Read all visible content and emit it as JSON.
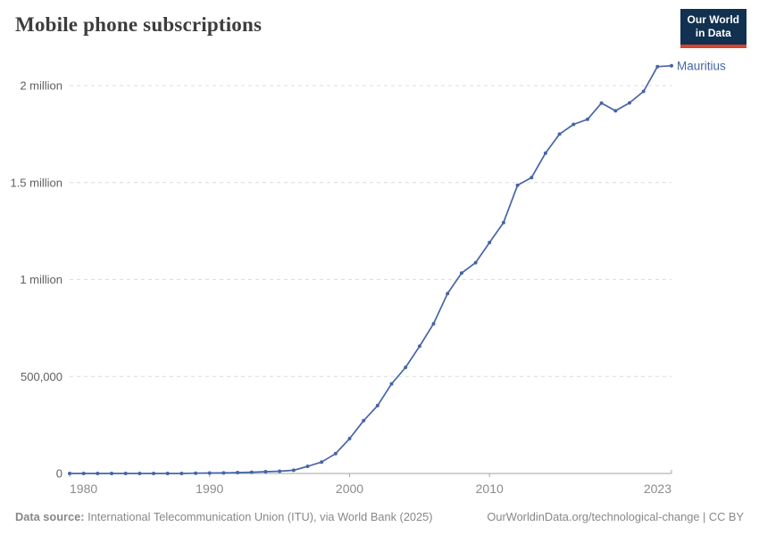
{
  "header": {
    "title": "Mobile phone subscriptions",
    "logo": {
      "line1": "Our World",
      "line2": "in Data"
    }
  },
  "chart_data": {
    "type": "line",
    "title": "Mobile phone subscriptions",
    "xlabel": "",
    "ylabel": "",
    "xlim": [
      1980,
      2023
    ],
    "ylim": [
      0,
      2000000
    ],
    "grid": "dashed-horizontal",
    "legend_position": "end-of-line",
    "x_ticks": [
      1980,
      1990,
      2000,
      2010,
      2023
    ],
    "x_tick_labels": [
      "1980",
      "1990",
      "2000",
      "2010",
      "2023"
    ],
    "y_ticks": [
      0,
      500000,
      1000000,
      1500000,
      2000000
    ],
    "y_tick_labels": [
      "0",
      "500,000",
      "1 million",
      "1.5 million",
      "2 million"
    ],
    "series": [
      {
        "name": "Mauritius",
        "color": "#4665a5",
        "x": [
          1980,
          1981,
          1982,
          1983,
          1984,
          1985,
          1986,
          1987,
          1988,
          1989,
          1990,
          1991,
          1992,
          1993,
          1994,
          1995,
          1996,
          1997,
          1998,
          1999,
          2000,
          2001,
          2002,
          2003,
          2004,
          2005,
          2006,
          2007,
          2008,
          2009,
          2010,
          2011,
          2012,
          2013,
          2014,
          2015,
          2016,
          2017,
          2018,
          2019,
          2020,
          2021,
          2022,
          2023
        ],
        "values": [
          0,
          0,
          0,
          0,
          0,
          0,
          0,
          0,
          0,
          1300,
          2500,
          2900,
          4500,
          6400,
          9000,
          11700,
          16500,
          37000,
          59000,
          102000,
          180000,
          272000,
          350000,
          462000,
          547000,
          656000,
          772000,
          928000,
          1033000,
          1087000,
          1191000,
          1294000,
          1486000,
          1526000,
          1652000,
          1750000,
          1800000,
          1826000,
          1910000,
          1870000,
          1911000,
          1970000,
          2098000,
          2102000
        ]
      }
    ]
  },
  "footer": {
    "source_label": "Data source:",
    "source_text": " International Telecommunication Union (ITU), via World Bank (2025)",
    "link_text": "OurWorldinData.org/technological-change | CC BY"
  },
  "colors": {
    "line": "#4665a5",
    "entity_label": "#4665a5",
    "grid": "#dcdcdc",
    "axis": "#a3a3a3",
    "x_tick_label": "#8b8b8b",
    "y_tick_label": "#606060",
    "title": "#3d3d3d",
    "footer": "#888888",
    "logo_bg": "#12304f",
    "logo_red": "#d8432f"
  }
}
